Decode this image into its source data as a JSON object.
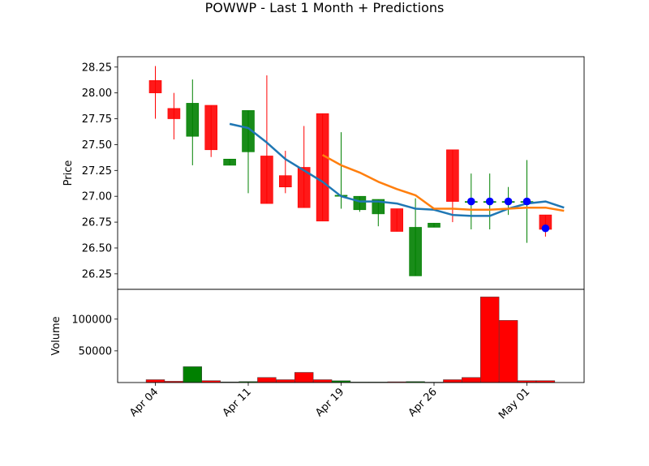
{
  "chart_data": {
    "title": "POWWP - Last 1 Month + Predictions",
    "type": "candlestick",
    "price_panel": {
      "ylabel": "Price",
      "ylim": [
        26.1,
        28.35
      ],
      "yticks": [
        26.25,
        26.5,
        26.75,
        27.0,
        27.25,
        27.5,
        27.75,
        28.0,
        28.25
      ],
      "ytick_labels": [
        "26.25",
        "26.50",
        "26.75",
        "27.00",
        "27.25",
        "27.50",
        "27.75",
        "28.00",
        "28.25"
      ],
      "candles": [
        {
          "date": "2024-04-04",
          "open": 28.12,
          "high": 28.26,
          "low": 27.75,
          "close": 28.0
        },
        {
          "date": "2024-04-05",
          "open": 27.85,
          "high": 28.0,
          "low": 27.55,
          "close": 27.75
        },
        {
          "date": "2024-04-08",
          "open": 27.58,
          "high": 28.13,
          "low": 27.3,
          "close": 27.9
        },
        {
          "date": "2024-04-09",
          "open": 27.88,
          "high": 27.88,
          "low": 27.38,
          "close": 27.45
        },
        {
          "date": "2024-04-10",
          "open": 27.3,
          "high": 27.36,
          "low": 27.3,
          "close": 27.36
        },
        {
          "date": "2024-04-11",
          "open": 27.43,
          "high": 27.83,
          "low": 27.03,
          "close": 27.83
        },
        {
          "date": "2024-04-12",
          "open": 27.39,
          "high": 28.17,
          "low": 26.93,
          "close": 26.93
        },
        {
          "date": "2024-04-15",
          "open": 27.2,
          "high": 27.44,
          "low": 27.03,
          "close": 27.09
        },
        {
          "date": "2024-04-16",
          "open": 27.28,
          "high": 27.68,
          "low": 26.89,
          "close": 26.89
        },
        {
          "date": "2024-04-17",
          "open": 27.8,
          "high": 27.8,
          "low": 26.76,
          "close": 26.76
        },
        {
          "date": "2024-04-18",
          "open": 27.0,
          "high": 27.62,
          "low": 26.88,
          "close": 27.01
        },
        {
          "date": "2024-04-19",
          "open": 26.87,
          "high": 27.0,
          "low": 26.85,
          "close": 27.0
        },
        {
          "date": "2024-04-22",
          "open": 26.83,
          "high": 26.97,
          "low": 26.71,
          "close": 26.97
        },
        {
          "date": "2024-04-23",
          "open": 26.88,
          "high": 26.88,
          "low": 26.66,
          "close": 26.66
        },
        {
          "date": "2024-04-24",
          "open": 26.23,
          "high": 26.98,
          "low": 26.23,
          "close": 26.7
        },
        {
          "date": "2024-04-25",
          "open": 26.7,
          "high": 26.74,
          "low": 26.7,
          "close": 26.74
        },
        {
          "date": "2024-04-26",
          "open": 27.45,
          "high": 27.45,
          "low": 26.75,
          "close": 26.95
        },
        {
          "date": "2024-04-29",
          "open": 26.95,
          "high": 27.22,
          "low": 26.68,
          "close": 26.95
        },
        {
          "date": "2024-04-30",
          "open": 26.95,
          "high": 27.22,
          "low": 26.68,
          "close": 26.95
        },
        {
          "date": "2024-05-01",
          "open": 26.95,
          "high": 27.09,
          "low": 26.82,
          "close": 26.95
        },
        {
          "date": "2024-05-02",
          "open": 26.95,
          "high": 27.35,
          "low": 26.55,
          "close": 26.95
        },
        {
          "date": "2024-05-03",
          "open": 26.82,
          "high": 26.82,
          "low": 26.61,
          "close": 26.68
        }
      ],
      "lines": [
        {
          "color": "#1f77b4",
          "points": [
            [
              5,
              27.7
            ],
            [
              6,
              27.66
            ],
            [
              7,
              27.52
            ],
            [
              8,
              27.36
            ],
            [
              9,
              27.25
            ],
            [
              10,
              27.14
            ],
            [
              11,
              27.0
            ],
            [
              12,
              26.95
            ],
            [
              13,
              26.95
            ],
            [
              14,
              26.93
            ],
            [
              15,
              26.88
            ],
            [
              16,
              26.87
            ],
            [
              17,
              26.82
            ],
            [
              18,
              26.81
            ],
            [
              19,
              26.81
            ],
            [
              20,
              26.88
            ],
            [
              21,
              26.93
            ],
            [
              22,
              26.95
            ],
            [
              23,
              26.89
            ]
          ]
        },
        {
          "color": "#ff7f0e",
          "points": [
            [
              10,
              27.4
            ],
            [
              11,
              27.3
            ],
            [
              12,
              27.23
            ],
            [
              13,
              27.14
            ],
            [
              14,
              27.07
            ],
            [
              15,
              27.01
            ],
            [
              16,
              26.88
            ],
            [
              17,
              26.88
            ],
            [
              18,
              26.87
            ],
            [
              19,
              26.87
            ],
            [
              20,
              26.88
            ],
            [
              21,
              26.89
            ],
            [
              22,
              26.89
            ],
            [
              23,
              26.86
            ]
          ]
        }
      ],
      "prediction_markers": [
        {
          "x": 18,
          "y": 26.95
        },
        {
          "x": 19,
          "y": 26.95
        },
        {
          "x": 20,
          "y": 26.95
        },
        {
          "x": 21,
          "y": 26.95
        },
        {
          "x": 22,
          "y": 26.69
        }
      ]
    },
    "volume_panel": {
      "ylabel": "Volume",
      "ylim": [
        0,
        147000
      ],
      "yticks": [
        50000,
        100000
      ],
      "ytick_labels": [
        "50000",
        "100000"
      ],
      "bars": [
        {
          "value": 4500,
          "color": "red"
        },
        {
          "value": 2000,
          "color": "red"
        },
        {
          "value": 25000,
          "color": "green"
        },
        {
          "value": 3000,
          "color": "red"
        },
        {
          "value": 1000,
          "color": "green"
        },
        {
          "value": 1500,
          "color": "green"
        },
        {
          "value": 8000,
          "color": "red"
        },
        {
          "value": 4500,
          "color": "red"
        },
        {
          "value": 16000,
          "color": "red"
        },
        {
          "value": 4500,
          "color": "red"
        },
        {
          "value": 2800,
          "color": "green"
        },
        {
          "value": 800,
          "color": "green"
        },
        {
          "value": 800,
          "color": "green"
        },
        {
          "value": 1200,
          "color": "red"
        },
        {
          "value": 1500,
          "color": "green"
        },
        {
          "value": 600,
          "color": "green"
        },
        {
          "value": 4500,
          "color": "red"
        },
        {
          "value": 8000,
          "color": "red"
        },
        {
          "value": 135000,
          "color": "red"
        },
        {
          "value": 98000,
          "color": "red"
        },
        {
          "value": 3000,
          "color": "red"
        },
        {
          "value": 3000,
          "color": "red"
        }
      ]
    },
    "xticks": [
      {
        "x": 1,
        "label": "Apr 04"
      },
      {
        "x": 6,
        "label": "Apr 11"
      },
      {
        "x": 11,
        "label": "Apr 19"
      },
      {
        "x": 16,
        "label": "Apr 26"
      },
      {
        "x": 21,
        "label": "May 01"
      }
    ],
    "colors": {
      "up": "#008000",
      "down": "#ff0000",
      "marker": "#0000ff"
    }
  }
}
